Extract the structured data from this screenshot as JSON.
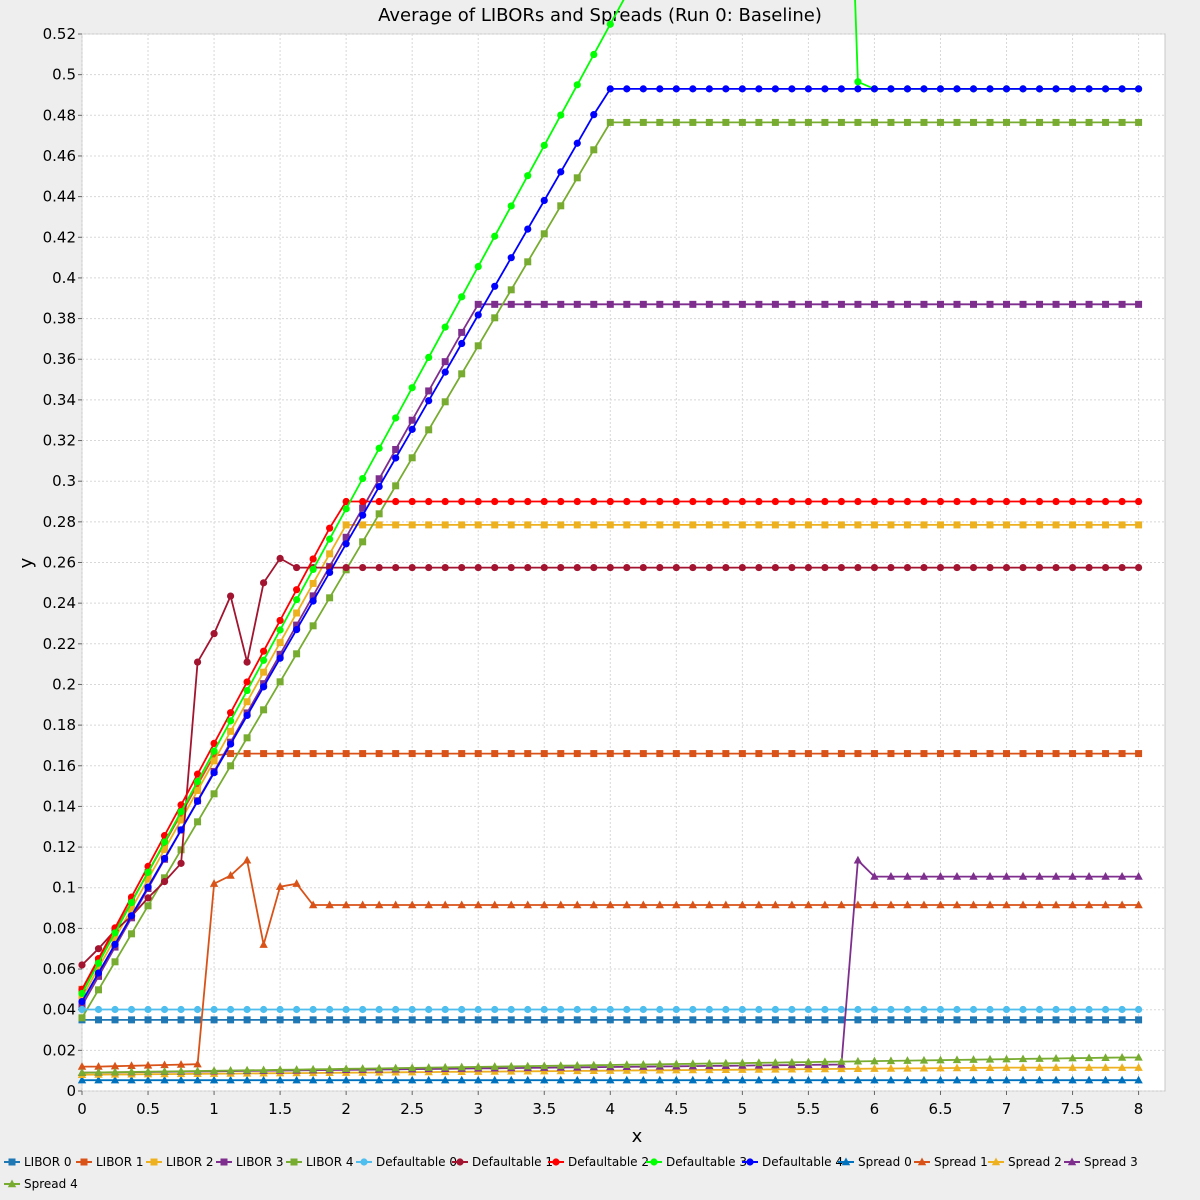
{
  "chart_data": {
    "type": "line",
    "title": "Average of LIBORs and Spreads (Run 0: Baseline)",
    "xlabel": "x",
    "ylabel": "y",
    "xlim": [
      0,
      8.2
    ],
    "ylim": [
      0,
      0.52
    ],
    "x_ticks": [
      "0",
      "0.5",
      "1",
      "1.5",
      "2",
      "2.5",
      "3",
      "3.5",
      "4",
      "4.5",
      "5",
      "5.5",
      "6",
      "6.5",
      "7",
      "7.5",
      "8"
    ],
    "y_ticks": [
      "0",
      "0.02",
      "0.04",
      "0.06",
      "0.08",
      "0.1",
      "0.12",
      "0.14",
      "0.16",
      "0.18",
      "0.2",
      "0.22",
      "0.24",
      "0.26",
      "0.28",
      "0.3",
      "0.32",
      "0.34",
      "0.36",
      "0.38",
      "0.4",
      "0.42",
      "0.44",
      "0.46",
      "0.48",
      "0.5",
      "0.52"
    ],
    "grid": true,
    "legend_position": "bottom",
    "x": [
      0,
      0.125,
      0.25,
      0.375,
      0.5,
      0.625,
      0.75,
      0.875,
      1,
      1.125,
      1.25,
      1.375,
      1.5,
      1.625,
      1.75,
      1.875,
      2,
      2.125,
      2.25,
      2.375,
      2.5,
      2.625,
      2.75,
      2.875,
      3,
      3.125,
      3.25,
      3.375,
      3.5,
      3.625,
      3.75,
      3.875,
      4,
      4.125,
      4.25,
      4.375,
      4.5,
      4.625,
      4.75,
      4.875,
      5,
      5.125,
      5.25,
      5.375,
      5.5,
      5.625,
      5.75,
      5.875,
      6,
      6.125,
      6.25,
      6.375,
      6.5,
      6.625,
      6.75,
      6.875,
      7,
      7.125,
      7.25,
      7.375,
      7.5,
      7.625,
      7.75,
      7.875,
      8
    ],
    "series": [
      {
        "name": "LIBOR 0",
        "color": "#1f77b4",
        "marker": "square",
        "formula": {
          "type": "const",
          "value": 0.035
        }
      },
      {
        "name": "LIBOR 1",
        "color": "#d95319",
        "marker": "square",
        "formula": {
          "type": "ramp",
          "start": 0.05,
          "slope": 0.0575,
          "cap": 0.166
        }
      },
      {
        "name": "LIBOR 2",
        "color": "#edb120",
        "marker": "square",
        "formula": {
          "type": "ramp",
          "start": 0.046,
          "slope": 0.0582,
          "cap": 0.2785
        }
      },
      {
        "name": "LIBOR 3",
        "color": "#7e2f8e",
        "marker": "square",
        "formula": {
          "type": "ramp",
          "start": 0.042,
          "slope": 0.0576,
          "cap": 0.387
        }
      },
      {
        "name": "LIBOR 4",
        "color": "#77ac30",
        "marker": "square",
        "formula": {
          "type": "ramp",
          "start": 0.036,
          "slope": 0.0551,
          "cap": 0.4765
        }
      },
      {
        "name": "Defaultable 0",
        "color": "#4dbeee",
        "marker": "circle",
        "formula": {
          "type": "const",
          "value": 0.0401
        }
      },
      {
        "name": "Defaultable 1",
        "color": "#a2142f",
        "marker": "circle",
        "formula": {
          "type": "points",
          "values": [
            0.062,
            0.07,
            0.079,
            0.086,
            0.095,
            0.103,
            0.112,
            0.211,
            0.225,
            0.2435,
            0.211,
            0.25,
            0.262,
            0.2575
          ],
          "tail": 0.2575
        }
      },
      {
        "name": "Defaultable 2",
        "color": "#ff0000",
        "marker": "circle",
        "formula": {
          "type": "ramp",
          "start": 0.05,
          "slope": 0.0605,
          "cap": 0.29
        }
      },
      {
        "name": "Defaultable 3",
        "color": "#00ff00",
        "marker": "circle",
        "formula": {
          "type": "ramp_jump",
          "start": 0.048,
          "slope": 0.0596,
          "jump_index": 47,
          "jump_value": 0.4965,
          "tail": 0.493
        }
      },
      {
        "name": "Defaultable 4",
        "color": "#0000ff",
        "marker": "circle",
        "formula": {
          "type": "ramp",
          "start": 0.044,
          "slope": 0.0563,
          "cap": 0.493
        }
      },
      {
        "name": "Spread 0",
        "color": "#0072bd",
        "marker": "triangle",
        "formula": {
          "type": "const",
          "value": 0.0053
        }
      },
      {
        "name": "Spread 1",
        "color": "#d95319",
        "marker": "triangle",
        "formula": {
          "type": "points",
          "values": [
            0.012,
            0.012,
            0.0122,
            0.0124,
            0.0126,
            0.0128,
            0.013,
            0.0132,
            0.102,
            0.106,
            0.1135,
            0.072,
            0.1005,
            0.102,
            0.0915
          ],
          "tail": 0.0915
        }
      },
      {
        "name": "Spread 2",
        "color": "#edb120",
        "marker": "triangle",
        "formula": {
          "type": "linear",
          "start": 0.008,
          "slope": 0.0005,
          "cap": 0.0115
        }
      },
      {
        "name": "Spread 3",
        "color": "#7e2f8e",
        "marker": "triangle",
        "formula": {
          "type": "linear_jump",
          "start": 0.009,
          "slope": 0.0007,
          "jump_index": 47,
          "jump_value": 0.1135,
          "tail": 0.1055
        }
      },
      {
        "name": "Spread 4",
        "color": "#77ac30",
        "marker": "triangle",
        "formula": {
          "type": "linear",
          "start": 0.009,
          "slope": 0.00095,
          "cap": 0.0165
        }
      }
    ]
  }
}
